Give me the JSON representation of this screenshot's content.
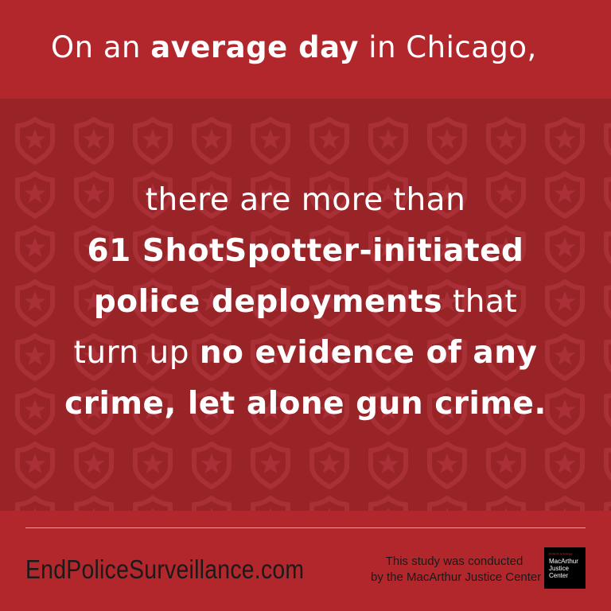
{
  "header": {
    "prefix": "On an",
    "bold": "average day",
    "suffix": "in Chicago,"
  },
  "background_pattern_icon": "shield-star-icon",
  "colors": {
    "header_red": "#b1272c",
    "band_red": "#992428",
    "footer_red": "#b1272c",
    "text": "#ffffff",
    "footer_text": "#1a1a1a"
  },
  "statement": {
    "line1": "there are more than",
    "line2_bold": "61 ShotSpotter-initiated",
    "line3_bold": "police deployments",
    "line3_regular": "that",
    "line4_regular": "turn up",
    "line4_bold": "no evidence of any",
    "line5_bold": "crime, let alone gun crime."
  },
  "footer": {
    "website": "EndPoliceSurveillance.com",
    "credit_line1": "This study was conducted",
    "credit_line2": "by the MacArthur Justice Center",
    "logo": {
      "tagline": "Roderick & Solange",
      "name_line1": "MacArthur",
      "name_line2": "Justice",
      "name_line3": "Center"
    }
  }
}
